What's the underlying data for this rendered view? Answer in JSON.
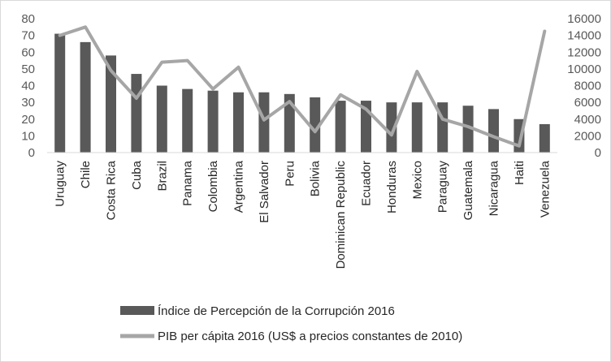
{
  "chart_data": {
    "type": "bar",
    "title": "",
    "xlabel": "",
    "categories": [
      "Uruguay",
      "Chile",
      "Costa Rica",
      "Cuba",
      "Brazil",
      "Panama",
      "Colombia",
      "Argentina",
      "El Salvador",
      "Peru",
      "Bolivia",
      "Dominican Republic",
      "Ecuador",
      "Honduras",
      "Mexico",
      "Paraguay",
      "Guatemala",
      "Nicaragua",
      "Haiti",
      "Venezuela"
    ],
    "series": [
      {
        "name": "Índice de Percepción de la Corrupción 2016",
        "kind": "bar",
        "axis": "left",
        "color": "#595959",
        "values": [
          71,
          66,
          58,
          47,
          40,
          38,
          37,
          36,
          36,
          35,
          33,
          31,
          31,
          30,
          30,
          30,
          28,
          26,
          20,
          17
        ]
      },
      {
        "name": "PIB per cápita 2016 (US$ a precios constantes de 2010)",
        "kind": "line",
        "axis": "right",
        "color": "#a6a6a6",
        "values": [
          14000,
          15000,
          9800,
          6500,
          10800,
          11000,
          7600,
          10200,
          3900,
          6100,
          2500,
          6900,
          5200,
          2100,
          9700,
          4000,
          3100,
          1900,
          800,
          14500
        ]
      }
    ],
    "y_left": {
      "ylim": [
        0,
        80
      ],
      "ticks": [
        "0",
        "10",
        "20",
        "30",
        "40",
        "50",
        "60",
        "70",
        "80"
      ]
    },
    "y_right": {
      "ylim": [
        0,
        16000
      ],
      "ticks": [
        "0",
        "2000",
        "4000",
        "6000",
        "8000",
        "10000",
        "12000",
        "14000",
        "16000"
      ]
    },
    "legend": {
      "placement": "bottom"
    }
  }
}
